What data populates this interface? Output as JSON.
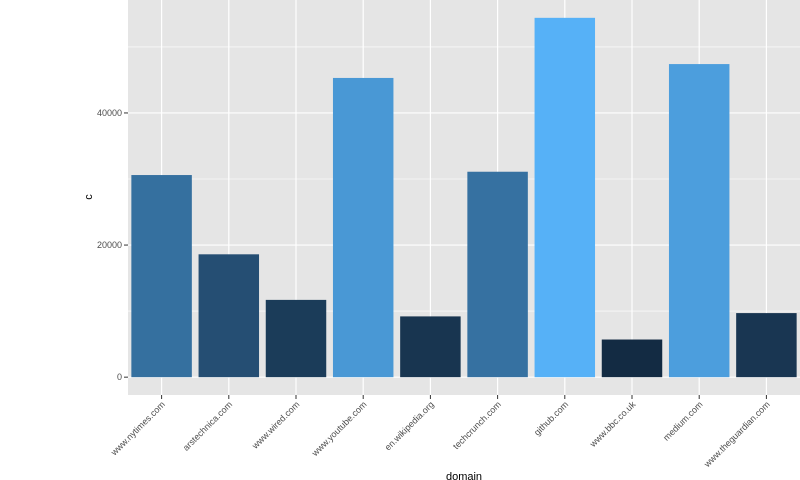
{
  "chart_data": {
    "type": "bar",
    "title": "",
    "xlabel": "domain",
    "ylabel": "c",
    "categories": [
      "www.nytimes.com",
      "arstechnica.com",
      "www.wired.com",
      "www.youtube.com",
      "en.wikipedia.org",
      "techcrunch.com",
      "github.com",
      "www.bbc.co.uk",
      "medium.com",
      "www.theguardian.com"
    ],
    "values": [
      30600,
      18600,
      11700,
      45300,
      9200,
      31100,
      54400,
      5700,
      47400,
      9700
    ],
    "ylim": [
      -2700,
      57100
    ],
    "yticks": [
      0,
      20000,
      40000
    ],
    "ytick_labels": [
      "0",
      "20000",
      "40000"
    ],
    "grid": true,
    "fill_scale": {
      "low": "#132B43",
      "high": "#56B1F7"
    },
    "colors": {
      "panel_background": "#e5e5e5",
      "grid_line": "#ffffff"
    }
  }
}
